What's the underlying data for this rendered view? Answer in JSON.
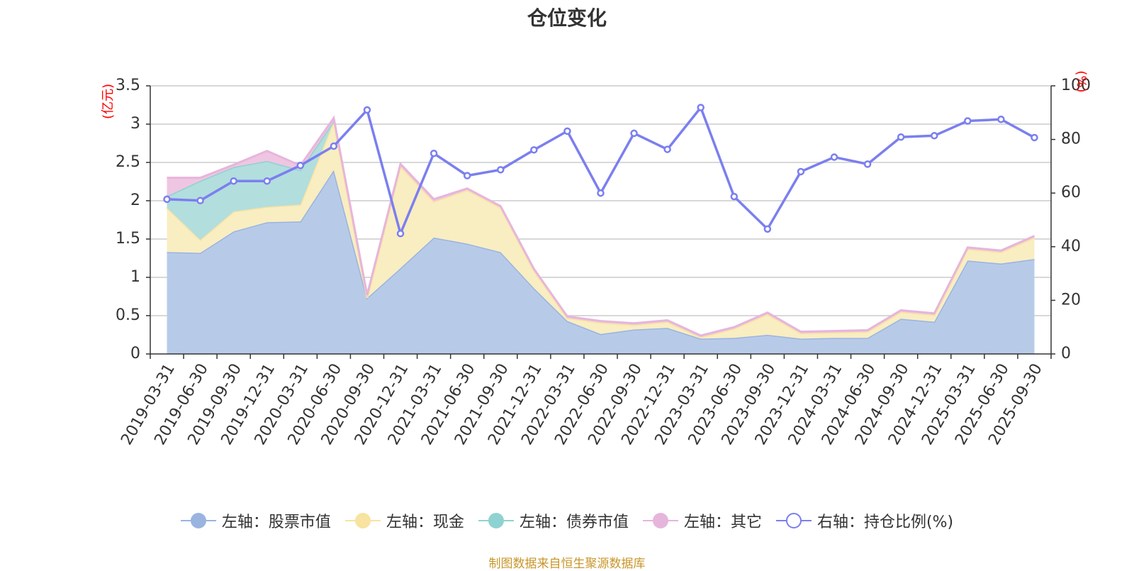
{
  "title": "仓位变化",
  "source_note": "制图数据来自恒生聚源数据库",
  "chart_data": {
    "type": "area",
    "categories": [
      "2019-03-31",
      "2019-06-30",
      "2019-09-30",
      "2019-12-31",
      "2020-03-31",
      "2020-06-30",
      "2020-09-30",
      "2020-12-31",
      "2021-03-31",
      "2021-06-30",
      "2021-09-30",
      "2021-12-31",
      "2022-03-31",
      "2022-06-30",
      "2022-09-30",
      "2022-12-31",
      "2023-03-31",
      "2023-06-30",
      "2023-09-30",
      "2023-12-31",
      "2024-03-31",
      "2024-06-30",
      "2024-09-30",
      "2024-12-31",
      "2025-03-31",
      "2025-06-30",
      "2025-09-30"
    ],
    "left_axis": {
      "unit": "(亿元)",
      "ylim": [
        0,
        3.5
      ],
      "ticks": [
        "0",
        "0.5",
        "1",
        "1.5",
        "2",
        "2.5",
        "3",
        "3.5"
      ]
    },
    "right_axis": {
      "unit": "(%)",
      "ylim": [
        0,
        100
      ],
      "ticks": [
        "0",
        "20",
        "40",
        "60",
        "80",
        "100"
      ]
    },
    "grid": true,
    "legend_position": "bottom",
    "stacked_series": [
      {
        "name": "左轴：股票市值",
        "color": "#9ab4e0",
        "fill": "#b7cbe9",
        "values": [
          1.33,
          1.32,
          1.6,
          1.72,
          1.73,
          2.4,
          0.73,
          1.12,
          1.52,
          1.44,
          1.33,
          0.86,
          0.43,
          0.26,
          0.32,
          0.34,
          0.2,
          0.21,
          0.25,
          0.2,
          0.21,
          0.21,
          0.46,
          0.42,
          1.22,
          1.18,
          1.24
        ]
      },
      {
        "name": "左轴：现金",
        "color": "#f8e3a0",
        "fill": "#f9edc2",
        "values": [
          0.58,
          0.17,
          0.26,
          0.2,
          0.22,
          0.64,
          0.0,
          1.33,
          0.47,
          0.7,
          0.58,
          0.23,
          0.04,
          0.15,
          0.06,
          0.08,
          0.02,
          0.12,
          0.27,
          0.07,
          0.07,
          0.08,
          0.09,
          0.09,
          0.15,
          0.15,
          0.28
        ]
      },
      {
        "name": "左轴：债券市值",
        "color": "#8fd2d2",
        "fill": "#b2dede",
        "values": [
          0.15,
          0.77,
          0.58,
          0.6,
          0.45,
          0.0,
          0.0,
          0.0,
          0.0,
          0.0,
          0.0,
          0.0,
          0.0,
          0.0,
          0.0,
          0.0,
          0.0,
          0.0,
          0.0,
          0.0,
          0.0,
          0.0,
          0.0,
          0.0,
          0.0,
          0.0,
          0.0
        ]
      },
      {
        "name": "左轴：其它",
        "color": "#e6b5dc",
        "fill": "#efc6e1",
        "values": [
          0.24,
          0.04,
          0.03,
          0.13,
          0.06,
          0.04,
          0.04,
          0.03,
          0.03,
          0.02,
          0.02,
          0.02,
          0.02,
          0.02,
          0.02,
          0.02,
          0.02,
          0.02,
          0.02,
          0.02,
          0.02,
          0.02,
          0.02,
          0.02,
          0.02,
          0.02,
          0.02
        ]
      }
    ],
    "line_series": {
      "name": "右轴：持仓比例(%)",
      "color": "#7b7fef",
      "values": [
        57.7,
        57.2,
        64.5,
        64.5,
        70.3,
        77.5,
        91.0,
        44.9,
        74.8,
        66.5,
        68.7,
        76.1,
        83.1,
        60.0,
        82.3,
        76.3,
        91.9,
        58.7,
        46.6,
        68.0,
        73.4,
        70.8,
        80.9,
        81.4,
        86.9,
        87.5,
        80.7
      ]
    }
  }
}
